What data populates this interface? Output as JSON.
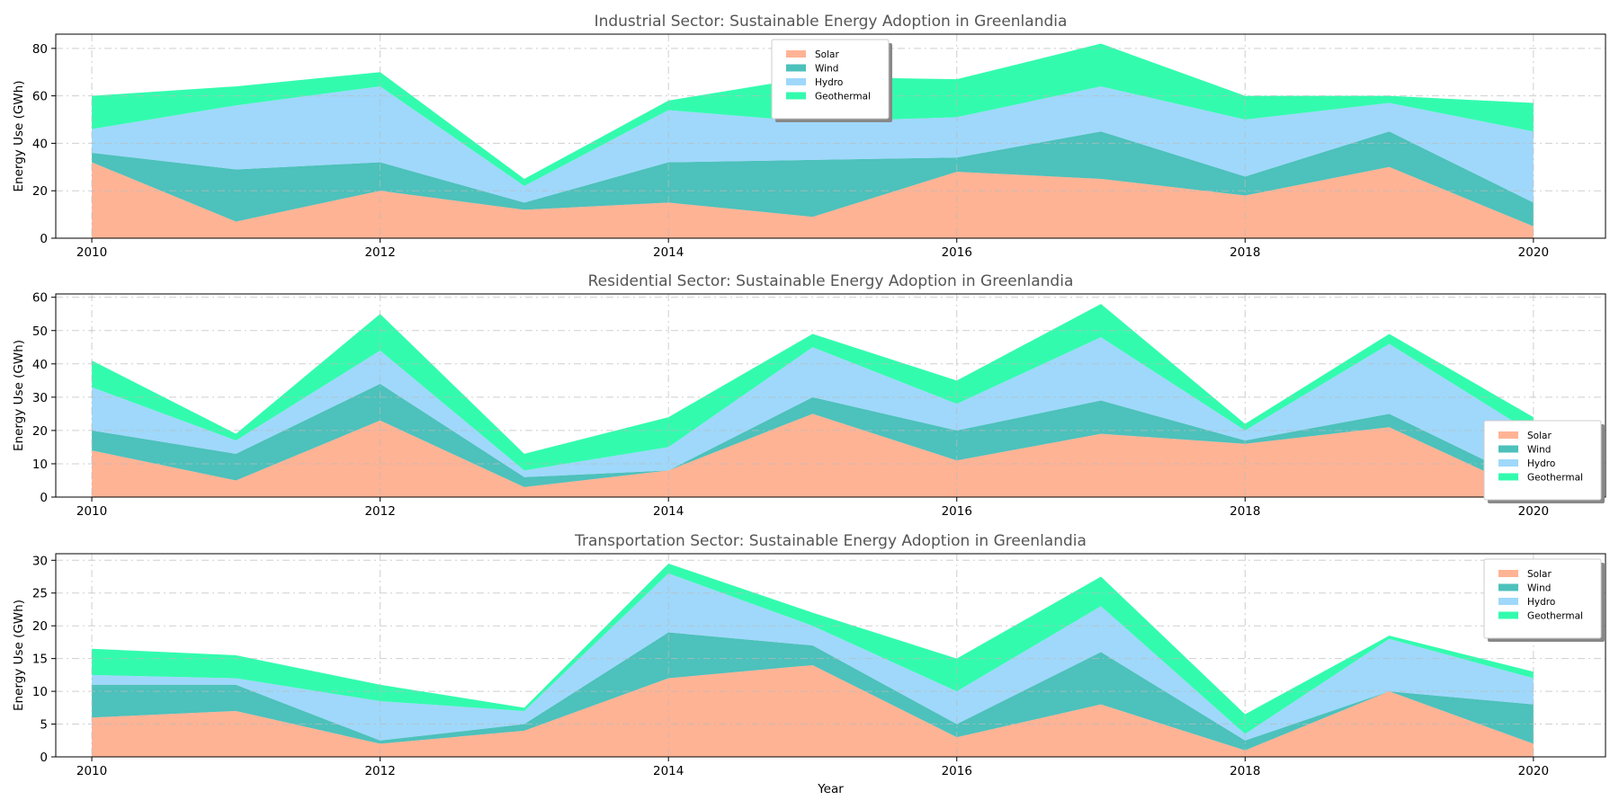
{
  "figure": {
    "xlabel": "Year",
    "ylabel": "Energy Use (GWh)"
  },
  "colors": {
    "Solar": "#FFA07A",
    "Wind": "#20B2AA",
    "Hydro": "#87CEFA",
    "Geothermal": "#00FA9A"
  },
  "chart_data": [
    {
      "type": "area",
      "stacked": true,
      "title": "Industrial Sector: Sustainable Energy Adoption in Greenlandia",
      "xlabel": "",
      "ylabel": "Energy Use (GWh)",
      "x": [
        2010,
        2011,
        2012,
        2013,
        2014,
        2015,
        2016,
        2017,
        2018,
        2019,
        2020
      ],
      "xticks": [
        2010,
        2012,
        2014,
        2016,
        2018,
        2020
      ],
      "ylim": [
        0,
        86
      ],
      "yticks": [
        0,
        20,
        40,
        60,
        80
      ],
      "grid": true,
      "legend": "upper-center",
      "series": [
        {
          "name": "Solar",
          "values": [
            32,
            7,
            20,
            12,
            15,
            9,
            28,
            25,
            18,
            30,
            5
          ]
        },
        {
          "name": "Wind",
          "values": [
            4,
            22,
            12,
            3,
            17,
            24,
            6,
            20,
            8,
            15,
            10
          ]
        },
        {
          "name": "Hydro",
          "values": [
            10,
            27,
            32,
            7,
            22,
            16,
            17,
            19,
            24,
            12,
            30
          ]
        },
        {
          "name": "Geothermal",
          "values": [
            14,
            8,
            6,
            3,
            4,
            19,
            16,
            18,
            10,
            3,
            12
          ]
        }
      ]
    },
    {
      "type": "area",
      "stacked": true,
      "title": "Residential Sector: Sustainable Energy Adoption in Greenlandia",
      "xlabel": "",
      "ylabel": "Energy Use (GWh)",
      "x": [
        2010,
        2011,
        2012,
        2013,
        2014,
        2015,
        2016,
        2017,
        2018,
        2019,
        2020
      ],
      "xticks": [
        2010,
        2012,
        2014,
        2016,
        2018,
        2020
      ],
      "ylim": [
        0,
        61
      ],
      "yticks": [
        0,
        10,
        20,
        30,
        40,
        50,
        60
      ],
      "grid": true,
      "legend": "lower-right",
      "series": [
        {
          "name": "Solar",
          "values": [
            14,
            5,
            23,
            3,
            8,
            25,
            11,
            19,
            16,
            21,
            1
          ]
        },
        {
          "name": "Wind",
          "values": [
            6,
            8,
            11,
            3,
            0,
            5,
            9,
            10,
            1,
            4,
            3
          ]
        },
        {
          "name": "Hydro",
          "values": [
            13,
            4,
            10,
            2,
            7,
            15,
            8,
            19,
            3,
            21,
            15
          ]
        },
        {
          "name": "Geothermal",
          "values": [
            8,
            2,
            11,
            5,
            9,
            4,
            7,
            10,
            2,
            3,
            5
          ]
        }
      ]
    },
    {
      "type": "area",
      "stacked": true,
      "title": "Transportation Sector: Sustainable Energy Adoption in Greenlandia",
      "xlabel": "Year",
      "ylabel": "Energy Use (GWh)",
      "x": [
        2010,
        2011,
        2012,
        2013,
        2014,
        2015,
        2016,
        2017,
        2018,
        2019,
        2020
      ],
      "xticks": [
        2010,
        2012,
        2014,
        2016,
        2018,
        2020
      ],
      "ylim": [
        0,
        31
      ],
      "yticks": [
        0,
        5,
        10,
        15,
        20,
        25,
        30
      ],
      "grid": true,
      "legend": "upper-right",
      "series": [
        {
          "name": "Solar",
          "values": [
            6,
            7,
            2,
            4,
            12,
            14,
            3,
            8,
            1,
            10,
            2
          ]
        },
        {
          "name": "Wind",
          "values": [
            5,
            4,
            0.5,
            1,
            7,
            3,
            2,
            8,
            1.5,
            0,
            6
          ]
        },
        {
          "name": "Hydro",
          "values": [
            1.5,
            1,
            6,
            2,
            9,
            3,
            5,
            7,
            1,
            8,
            4
          ]
        },
        {
          "name": "Geothermal",
          "values": [
            4,
            3.5,
            2.5,
            0.5,
            1.5,
            2,
            5,
            4.5,
            3,
            0.5,
            1
          ]
        }
      ]
    }
  ]
}
